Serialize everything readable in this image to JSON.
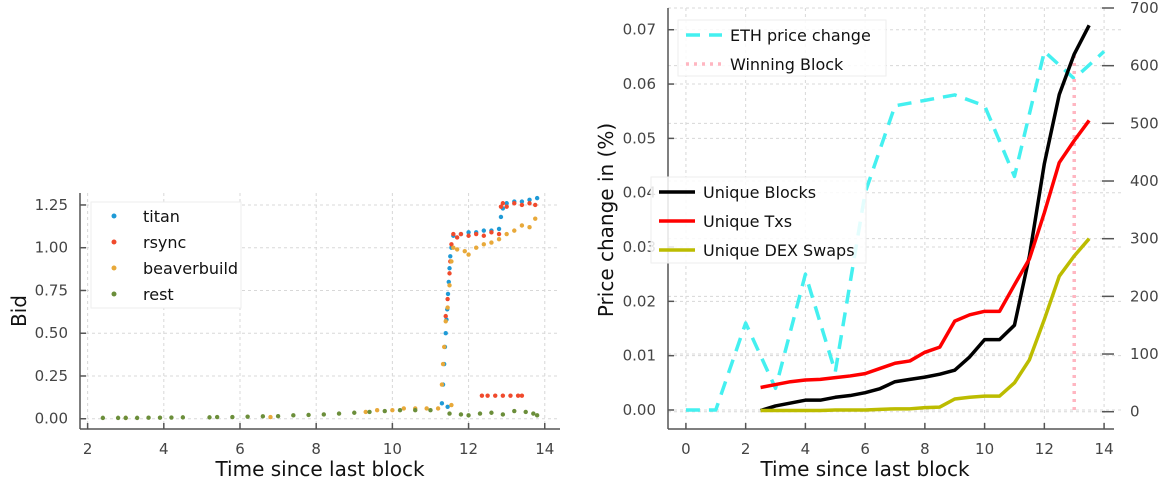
{
  "chart_data": [
    {
      "type": "scatter",
      "xlabel": "Time since last block",
      "ylabel": "Bid",
      "xlim": [
        1.8,
        14.4
      ],
      "ylim": [
        -0.06,
        1.32
      ],
      "xticks": [
        2,
        4,
        6,
        8,
        10,
        12,
        14
      ],
      "yticks": [
        0.0,
        0.25,
        0.5,
        0.75,
        1.0,
        1.25
      ],
      "ytick_labels": [
        "0.00",
        "0.25",
        "0.50",
        "0.75",
        "1.00",
        "1.25"
      ],
      "grid": true,
      "legend": "top-left",
      "series": [
        {
          "name": "titan",
          "color": "#1f9ad6",
          "points": [
            [
              11.3,
              0.09
            ],
            [
              11.33,
              0.2
            ],
            [
              11.36,
              0.32
            ],
            [
              11.38,
              0.42
            ],
            [
              11.4,
              0.5
            ],
            [
              11.42,
              0.58
            ],
            [
              11.44,
              0.64
            ],
            [
              11.46,
              0.73
            ],
            [
              11.48,
              0.8
            ],
            [
              11.5,
              0.88
            ],
            [
              11.52,
              0.95
            ],
            [
              11.55,
              1.0
            ],
            [
              11.6,
              1.07
            ],
            [
              11.8,
              1.08
            ],
            [
              12.0,
              1.09
            ],
            [
              12.2,
              1.09
            ],
            [
              12.4,
              1.1
            ],
            [
              12.6,
              1.1
            ],
            [
              12.8,
              1.11
            ],
            [
              12.85,
              1.18
            ],
            [
              12.9,
              1.23
            ],
            [
              13.0,
              1.26
            ],
            [
              13.2,
              1.27
            ],
            [
              13.4,
              1.27
            ],
            [
              13.6,
              1.28
            ],
            [
              13.8,
              1.29
            ],
            [
              11.45,
              0.07
            ]
          ]
        },
        {
          "name": "rsync",
          "color": "#f04a2c",
          "points": [
            [
              11.4,
              0.6
            ],
            [
              11.45,
              0.7
            ],
            [
              11.5,
              0.85
            ],
            [
              11.52,
              0.92
            ],
            [
              11.55,
              1.02
            ],
            [
              11.6,
              1.08
            ],
            [
              11.7,
              1.06
            ],
            [
              11.8,
              1.08
            ],
            [
              12.0,
              1.07
            ],
            [
              12.2,
              1.08
            ],
            [
              12.4,
              1.07
            ],
            [
              12.6,
              1.09
            ],
            [
              12.8,
              1.08
            ],
            [
              12.85,
              1.24
            ],
            [
              12.9,
              1.26
            ],
            [
              13.0,
              1.24
            ],
            [
              13.2,
              1.26
            ],
            [
              13.4,
              1.25
            ],
            [
              13.6,
              1.26
            ],
            [
              13.75,
              1.25
            ],
            [
              12.35,
              0.135
            ],
            [
              12.5,
              0.135
            ],
            [
              12.7,
              0.135
            ],
            [
              12.9,
              0.135
            ],
            [
              13.1,
              0.135
            ],
            [
              13.3,
              0.135
            ],
            [
              13.4,
              0.135
            ]
          ]
        },
        {
          "name": "beaverbuild",
          "color": "#e8a93a",
          "points": [
            [
              9.3,
              0.04
            ],
            [
              9.6,
              0.05
            ],
            [
              10.0,
              0.05
            ],
            [
              10.3,
              0.06
            ],
            [
              10.6,
              0.06
            ],
            [
              10.9,
              0.06
            ],
            [
              11.2,
              0.06
            ],
            [
              11.3,
              0.2
            ],
            [
              11.33,
              0.32
            ],
            [
              11.36,
              0.42
            ],
            [
              11.4,
              0.57
            ],
            [
              11.45,
              0.65
            ],
            [
              11.5,
              0.78
            ],
            [
              11.55,
              0.92
            ],
            [
              11.6,
              1.0
            ],
            [
              11.7,
              0.99
            ],
            [
              11.9,
              0.98
            ],
            [
              12.0,
              0.96
            ],
            [
              12.2,
              1.0
            ],
            [
              12.4,
              1.02
            ],
            [
              12.6,
              1.03
            ],
            [
              12.8,
              1.05
            ],
            [
              13.0,
              1.08
            ],
            [
              13.2,
              1.1
            ],
            [
              13.4,
              1.13
            ],
            [
              13.6,
              1.12
            ],
            [
              13.75,
              1.17
            ],
            [
              11.55,
              0.08
            ],
            [
              6.8,
              0.01
            ],
            [
              3.0,
              0.005
            ]
          ]
        },
        {
          "name": "rest",
          "color": "#6b8e3a",
          "points": [
            [
              2.4,
              0.005
            ],
            [
              2.8,
              0.005
            ],
            [
              3.0,
              0.005
            ],
            [
              3.3,
              0.005
            ],
            [
              3.6,
              0.006
            ],
            [
              3.9,
              0.006
            ],
            [
              4.2,
              0.007
            ],
            [
              4.5,
              0.008
            ],
            [
              5.2,
              0.008
            ],
            [
              5.4,
              0.01
            ],
            [
              5.8,
              0.01
            ],
            [
              6.2,
              0.012
            ],
            [
              6.6,
              0.014
            ],
            [
              7.0,
              0.015
            ],
            [
              7.4,
              0.02
            ],
            [
              7.8,
              0.022
            ],
            [
              8.2,
              0.025
            ],
            [
              8.6,
              0.03
            ],
            [
              9.0,
              0.035
            ],
            [
              9.4,
              0.04
            ],
            [
              9.8,
              0.045
            ],
            [
              10.2,
              0.05
            ],
            [
              10.6,
              0.05
            ],
            [
              11.0,
              0.05
            ],
            [
              11.5,
              0.03
            ],
            [
              11.8,
              0.025
            ],
            [
              12.0,
              0.02
            ],
            [
              12.3,
              0.03
            ],
            [
              12.6,
              0.035
            ],
            [
              12.9,
              0.025
            ],
            [
              13.2,
              0.045
            ],
            [
              13.5,
              0.04
            ],
            [
              13.7,
              0.03
            ],
            [
              13.8,
              0.02
            ]
          ]
        }
      ]
    },
    {
      "type": "line",
      "xlabel": "Time since last block",
      "ylabel": "Price change in (%)",
      "xlim": [
        -0.6,
        14.6
      ],
      "ylim": [
        -0.0035,
        0.074
      ],
      "y2lim": [
        -30,
        700
      ],
      "xticks": [
        0,
        2,
        4,
        6,
        8,
        10,
        12,
        14
      ],
      "yticks": [
        0.0,
        0.01,
        0.02,
        0.03,
        0.04,
        0.05,
        0.06,
        0.07
      ],
      "ytick_labels": [
        "0.00",
        "0.01",
        "0.02",
        "0.03",
        "0.04",
        "0.05",
        "0.06",
        "0.07"
      ],
      "y2ticks": [
        0,
        100,
        200,
        300,
        400,
        500,
        600,
        700
      ],
      "grid": true,
      "legends": [
        "top-left",
        "center-left"
      ],
      "series": [
        {
          "name": "ETH price change",
          "axis": "left",
          "color": "#44f0f0",
          "style": "dashed",
          "x": [
            0,
            1,
            2,
            3,
            4,
            5,
            6,
            7,
            8,
            9,
            10,
            11,
            12,
            13,
            14
          ],
          "y": [
            0,
            0,
            0.016,
            0.004,
            0.025,
            0.007,
            0.04,
            0.056,
            0.057,
            0.058,
            0.056,
            0.043,
            0.066,
            0.061,
            0.066
          ]
        },
        {
          "name": "Winning Block",
          "axis": "left",
          "color": "#ffb6c1",
          "style": "dotted",
          "x": [
            13,
            13
          ],
          "y": [
            0,
            0.0655
          ]
        },
        {
          "name": "Unique Blocks",
          "axis": "right",
          "color": "#000000",
          "style": "solid",
          "x": [
            2.5,
            3,
            3.5,
            4,
            4.5,
            5,
            5.5,
            6,
            6.5,
            7,
            7.5,
            8,
            8.5,
            9,
            9.5,
            10,
            10.5,
            11,
            11.5,
            12,
            12.5,
            13,
            13.5
          ],
          "y": [
            2,
            10,
            15,
            20,
            20,
            25,
            28,
            33,
            40,
            52,
            56,
            60,
            65,
            72,
            95,
            125,
            125,
            150,
            270,
            430,
            550,
            620,
            670
          ]
        },
        {
          "name": "Unique Txs",
          "axis": "right",
          "color": "#ff0000",
          "style": "solid",
          "x": [
            2.5,
            3,
            3.5,
            4,
            4.5,
            5,
            5.5,
            6,
            6.5,
            7,
            7.5,
            8,
            8.5,
            9,
            9.5,
            10,
            10.5,
            11,
            11.5,
            12,
            12.5,
            13,
            13.5
          ],
          "y": [
            42,
            47,
            52,
            55,
            56,
            59,
            62,
            66,
            75,
            84,
            88,
            103,
            112,
            157,
            168,
            174,
            174,
            220,
            265,
            345,
            432,
            470,
            505
          ]
        },
        {
          "name": "Unique DEX Swaps",
          "axis": "right",
          "color": "#bcbc00",
          "style": "solid",
          "x": [
            2.5,
            3,
            3.5,
            4,
            4.5,
            5,
            5.5,
            6,
            6.5,
            7,
            7.5,
            8,
            8.5,
            9,
            9.5,
            10,
            10.5,
            11,
            11.5,
            12,
            12.5,
            13,
            13.5
          ],
          "y": [
            2,
            2,
            2,
            2,
            2,
            3,
            3,
            3,
            4,
            5,
            5,
            7,
            8,
            22,
            25,
            27,
            27,
            50,
            90,
            160,
            235,
            270,
            300
          ]
        }
      ]
    }
  ]
}
